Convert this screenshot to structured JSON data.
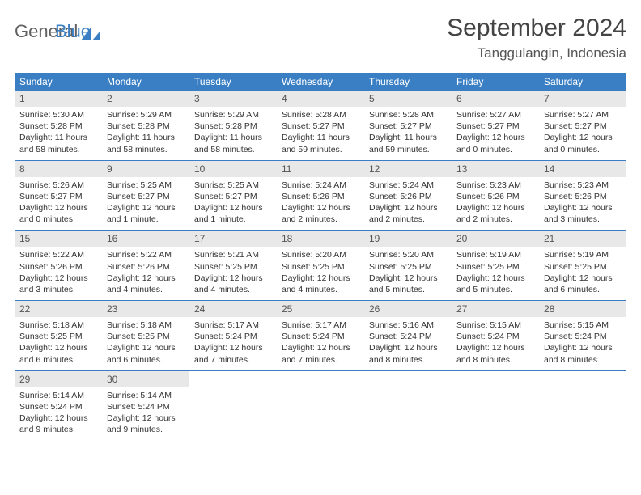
{
  "logo": {
    "word1": "General",
    "word2": "Blue"
  },
  "title": "September 2024",
  "location": "Tanggulangin, Indonesia",
  "colors": {
    "header_bg": "#3a7fc4",
    "header_text": "#ffffff",
    "daynum_bg": "#e8e8e8",
    "border": "#3a7fc4",
    "logo_gray": "#606060",
    "logo_blue": "#3a7fc4"
  },
  "type": "calendar-table",
  "columns": [
    "Sunday",
    "Monday",
    "Tuesday",
    "Wednesday",
    "Thursday",
    "Friday",
    "Saturday"
  ],
  "weeks": [
    [
      {
        "n": "1",
        "sr": "Sunrise: 5:30 AM",
        "ss": "Sunset: 5:28 PM",
        "dl": "Daylight: 11 hours and 58 minutes."
      },
      {
        "n": "2",
        "sr": "Sunrise: 5:29 AM",
        "ss": "Sunset: 5:28 PM",
        "dl": "Daylight: 11 hours and 58 minutes."
      },
      {
        "n": "3",
        "sr": "Sunrise: 5:29 AM",
        "ss": "Sunset: 5:28 PM",
        "dl": "Daylight: 11 hours and 58 minutes."
      },
      {
        "n": "4",
        "sr": "Sunrise: 5:28 AM",
        "ss": "Sunset: 5:27 PM",
        "dl": "Daylight: 11 hours and 59 minutes."
      },
      {
        "n": "5",
        "sr": "Sunrise: 5:28 AM",
        "ss": "Sunset: 5:27 PM",
        "dl": "Daylight: 11 hours and 59 minutes."
      },
      {
        "n": "6",
        "sr": "Sunrise: 5:27 AM",
        "ss": "Sunset: 5:27 PM",
        "dl": "Daylight: 12 hours and 0 minutes."
      },
      {
        "n": "7",
        "sr": "Sunrise: 5:27 AM",
        "ss": "Sunset: 5:27 PM",
        "dl": "Daylight: 12 hours and 0 minutes."
      }
    ],
    [
      {
        "n": "8",
        "sr": "Sunrise: 5:26 AM",
        "ss": "Sunset: 5:27 PM",
        "dl": "Daylight: 12 hours and 0 minutes."
      },
      {
        "n": "9",
        "sr": "Sunrise: 5:25 AM",
        "ss": "Sunset: 5:27 PM",
        "dl": "Daylight: 12 hours and 1 minute."
      },
      {
        "n": "10",
        "sr": "Sunrise: 5:25 AM",
        "ss": "Sunset: 5:27 PM",
        "dl": "Daylight: 12 hours and 1 minute."
      },
      {
        "n": "11",
        "sr": "Sunrise: 5:24 AM",
        "ss": "Sunset: 5:26 PM",
        "dl": "Daylight: 12 hours and 2 minutes."
      },
      {
        "n": "12",
        "sr": "Sunrise: 5:24 AM",
        "ss": "Sunset: 5:26 PM",
        "dl": "Daylight: 12 hours and 2 minutes."
      },
      {
        "n": "13",
        "sr": "Sunrise: 5:23 AM",
        "ss": "Sunset: 5:26 PM",
        "dl": "Daylight: 12 hours and 2 minutes."
      },
      {
        "n": "14",
        "sr": "Sunrise: 5:23 AM",
        "ss": "Sunset: 5:26 PM",
        "dl": "Daylight: 12 hours and 3 minutes."
      }
    ],
    [
      {
        "n": "15",
        "sr": "Sunrise: 5:22 AM",
        "ss": "Sunset: 5:26 PM",
        "dl": "Daylight: 12 hours and 3 minutes."
      },
      {
        "n": "16",
        "sr": "Sunrise: 5:22 AM",
        "ss": "Sunset: 5:26 PM",
        "dl": "Daylight: 12 hours and 4 minutes."
      },
      {
        "n": "17",
        "sr": "Sunrise: 5:21 AM",
        "ss": "Sunset: 5:25 PM",
        "dl": "Daylight: 12 hours and 4 minutes."
      },
      {
        "n": "18",
        "sr": "Sunrise: 5:20 AM",
        "ss": "Sunset: 5:25 PM",
        "dl": "Daylight: 12 hours and 4 minutes."
      },
      {
        "n": "19",
        "sr": "Sunrise: 5:20 AM",
        "ss": "Sunset: 5:25 PM",
        "dl": "Daylight: 12 hours and 5 minutes."
      },
      {
        "n": "20",
        "sr": "Sunrise: 5:19 AM",
        "ss": "Sunset: 5:25 PM",
        "dl": "Daylight: 12 hours and 5 minutes."
      },
      {
        "n": "21",
        "sr": "Sunrise: 5:19 AM",
        "ss": "Sunset: 5:25 PM",
        "dl": "Daylight: 12 hours and 6 minutes."
      }
    ],
    [
      {
        "n": "22",
        "sr": "Sunrise: 5:18 AM",
        "ss": "Sunset: 5:25 PM",
        "dl": "Daylight: 12 hours and 6 minutes."
      },
      {
        "n": "23",
        "sr": "Sunrise: 5:18 AM",
        "ss": "Sunset: 5:25 PM",
        "dl": "Daylight: 12 hours and 6 minutes."
      },
      {
        "n": "24",
        "sr": "Sunrise: 5:17 AM",
        "ss": "Sunset: 5:24 PM",
        "dl": "Daylight: 12 hours and 7 minutes."
      },
      {
        "n": "25",
        "sr": "Sunrise: 5:17 AM",
        "ss": "Sunset: 5:24 PM",
        "dl": "Daylight: 12 hours and 7 minutes."
      },
      {
        "n": "26",
        "sr": "Sunrise: 5:16 AM",
        "ss": "Sunset: 5:24 PM",
        "dl": "Daylight: 12 hours and 8 minutes."
      },
      {
        "n": "27",
        "sr": "Sunrise: 5:15 AM",
        "ss": "Sunset: 5:24 PM",
        "dl": "Daylight: 12 hours and 8 minutes."
      },
      {
        "n": "28",
        "sr": "Sunrise: 5:15 AM",
        "ss": "Sunset: 5:24 PM",
        "dl": "Daylight: 12 hours and 8 minutes."
      }
    ],
    [
      {
        "n": "29",
        "sr": "Sunrise: 5:14 AM",
        "ss": "Sunset: 5:24 PM",
        "dl": "Daylight: 12 hours and 9 minutes."
      },
      {
        "n": "30",
        "sr": "Sunrise: 5:14 AM",
        "ss": "Sunset: 5:24 PM",
        "dl": "Daylight: 12 hours and 9 minutes."
      },
      null,
      null,
      null,
      null,
      null
    ]
  ]
}
